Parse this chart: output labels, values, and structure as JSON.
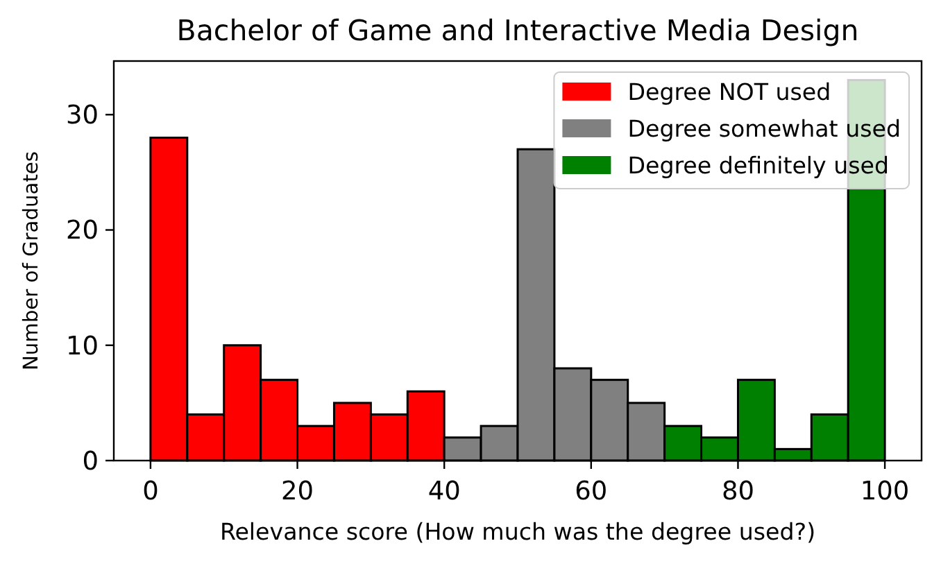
{
  "chart_data": {
    "type": "histogram",
    "title": "Bachelor of Game and Interactive Media Design",
    "xlabel": "Relevance score (How much was the degree used?)",
    "ylabel": "Number of Graduates",
    "bins": [
      0,
      5,
      10,
      15,
      20,
      25,
      30,
      35,
      40,
      45,
      50,
      55,
      60,
      65,
      70,
      75,
      80,
      85,
      90,
      95,
      100
    ],
    "series": [
      {
        "name": "Degree NOT used",
        "color": "#ff0000",
        "values": [
          28,
          4,
          10,
          7,
          3,
          5,
          4,
          6,
          null,
          null,
          null,
          null,
          null,
          null,
          null,
          null,
          null,
          null,
          null,
          null
        ]
      },
      {
        "name": "Degree somewhat used",
        "color": "#808080",
        "values": [
          null,
          null,
          null,
          null,
          null,
          null,
          null,
          null,
          2,
          3,
          27,
          8,
          7,
          5,
          null,
          null,
          null,
          null,
          null,
          null
        ]
      },
      {
        "name": "Degree definitely used",
        "color": "#008000",
        "values": [
          null,
          null,
          null,
          null,
          null,
          null,
          null,
          null,
          null,
          null,
          null,
          null,
          null,
          null,
          3,
          2,
          7,
          1,
          4,
          33
        ]
      }
    ],
    "xlim": [
      -5,
      105
    ],
    "ylim": [
      0,
      34.65
    ],
    "xticks": [
      0,
      20,
      40,
      60,
      80,
      100
    ],
    "yticks": [
      0,
      10,
      20,
      30
    ],
    "legend": "top right"
  }
}
